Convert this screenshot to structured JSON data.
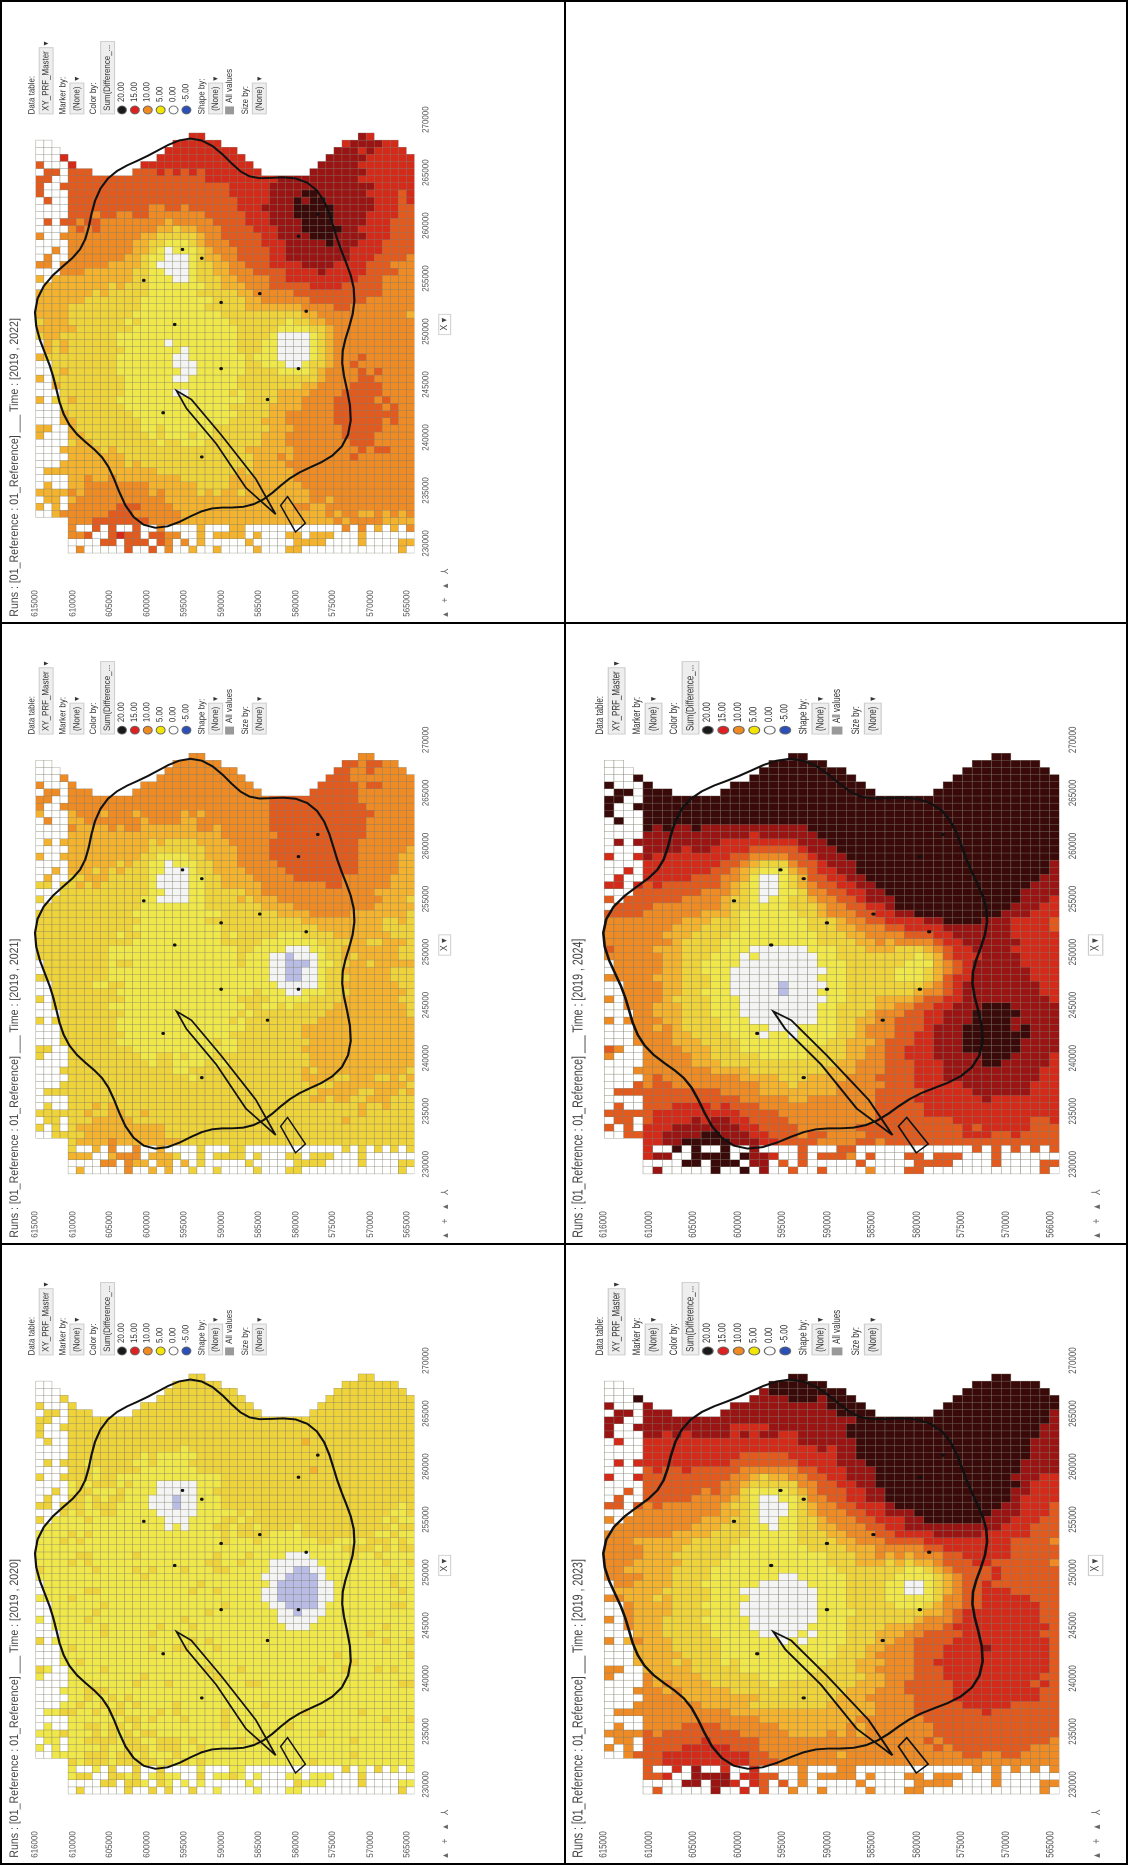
{
  "panels": [
    {
      "title": "Runs : [01_Reference : 01_Reference] ___ Time : [2019 , 2020]",
      "yticks": [
        "616000",
        "610000",
        "605000",
        "600000",
        "595000",
        "590000",
        "585000",
        "580000",
        "575000",
        "570000",
        "565000"
      ],
      "intensity": 0,
      "alt_legend": false
    },
    {
      "title": "Runs : [01_Reference : 01_Reference] ___ Time : [2019 , 2021]",
      "yticks": [
        "615000",
        "610000",
        "605000",
        "600000",
        "595000",
        "590000",
        "585000",
        "580000",
        "575000",
        "570000",
        "565000"
      ],
      "intensity": 1,
      "alt_legend": true
    },
    {
      "title": "Runs : [01_Reference : 01_Reference] ___ Time : [2019 , 2022]",
      "yticks": [
        "615000",
        "610000",
        "605000",
        "600000",
        "595000",
        "590000",
        "585000",
        "580000",
        "575000",
        "570000",
        "565000"
      ],
      "intensity": 2,
      "alt_legend": true
    },
    {
      "title": "Runs : [01_Reference : 01_Reference] ___ Time : [2019 , 2023]",
      "yticks": [
        "615000",
        "610000",
        "605000",
        "600000",
        "595000",
        "590000",
        "585000",
        "580000",
        "575000",
        "570000",
        "565000"
      ],
      "intensity": 3,
      "alt_legend": false
    },
    {
      "title": "Runs : [01_Reference : 01_Reference] ___ Time : [2019 , 2024]",
      "yticks": [
        "616000",
        "610000",
        "605000",
        "600000",
        "595000",
        "590000",
        "585000",
        "580000",
        "575000",
        "570000",
        "566000"
      ],
      "intensity": 4,
      "alt_legend": false
    }
  ],
  "xticks": [
    "230000",
    "235000",
    "240000",
    "245000",
    "250000",
    "255000",
    "260000",
    "265000",
    "270000"
  ],
  "xaxis": "X ▾",
  "toolbar": "▴ + ▴ ⅄",
  "legend": {
    "data_table_label": "Data table:",
    "data_table_value": "XY_PRF_Master",
    "marker_by_label": "Marker by:",
    "marker_by_value": "(None)",
    "color_by_label": "Color by:",
    "color_by_value": "Sum(Difference_...",
    "items": [
      {
        "value": "20.00",
        "color": "#1a1a1a"
      },
      {
        "value": "15.00",
        "color": "#e02020"
      },
      {
        "value": "10.00",
        "color": "#f08a20"
      },
      {
        "value": "5.00",
        "color": "#f2e600"
      },
      {
        "value": "0.00",
        "color": "#ffffff"
      },
      {
        "value": "-5.00",
        "color": "#2a4fb8"
      }
    ],
    "shape_by_label": "Shape by:",
    "shape_by_value": "(None)",
    "all_values": "All values",
    "size_by_label": "Size by:",
    "size_by_value": "(None)"
  }
}
